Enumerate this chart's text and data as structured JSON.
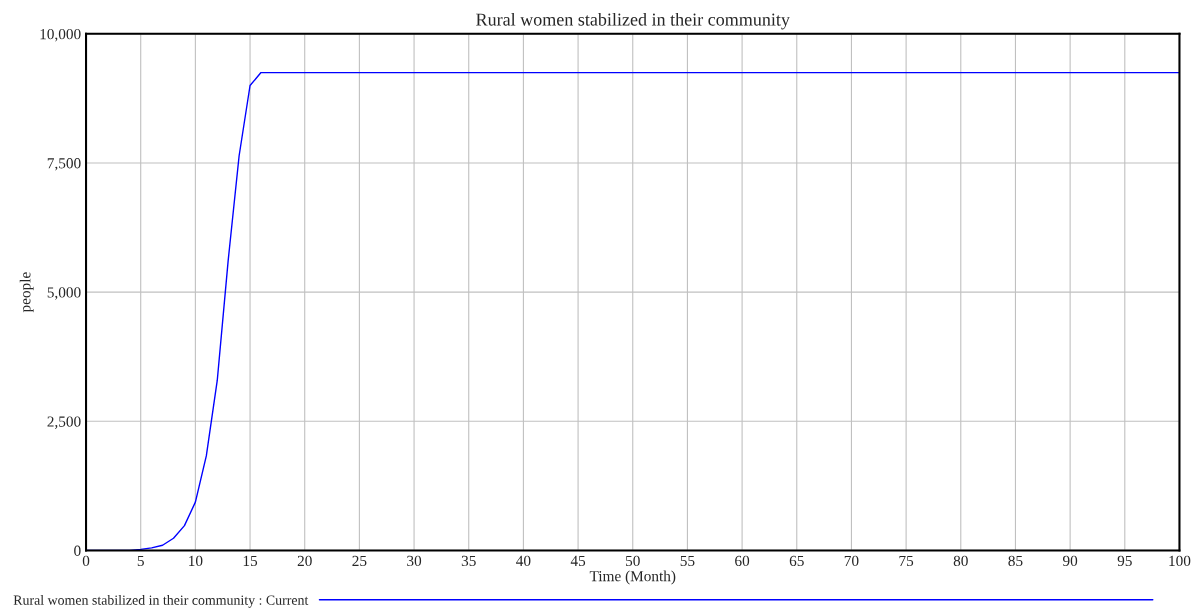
{
  "chart_data": {
    "type": "line",
    "title": "Rural women stabilized in their community",
    "xlabel": "Time (Month)",
    "ylabel": "people",
    "xlim": [
      0,
      100
    ],
    "xticks": [
      0,
      5,
      10,
      15,
      20,
      25,
      30,
      35,
      40,
      45,
      50,
      55,
      60,
      65,
      70,
      75,
      80,
      85,
      90,
      95,
      100
    ],
    "ylim": [
      0,
      10000
    ],
    "yticks": [
      {
        "value": 0,
        "label": "0"
      },
      {
        "value": 2500,
        "label": "2,500"
      },
      {
        "value": 5000,
        "label": "5,000"
      },
      {
        "value": 7500,
        "label": "7,500"
      },
      {
        "value": 10000,
        "label": "10,000"
      }
    ],
    "grid": true,
    "legend": "bottom",
    "series": [
      {
        "name": "Rural women stabilized in their community : Current",
        "color": "#0000ff",
        "x": [
          0,
          4,
          5,
          6,
          7,
          8,
          9,
          10,
          11,
          12,
          13,
          14,
          15,
          16,
          100
        ],
        "values": [
          0,
          0,
          20,
          50,
          100,
          235,
          480,
          935,
          1830,
          3290,
          5615,
          7640,
          9000,
          9250,
          9250
        ]
      }
    ]
  }
}
